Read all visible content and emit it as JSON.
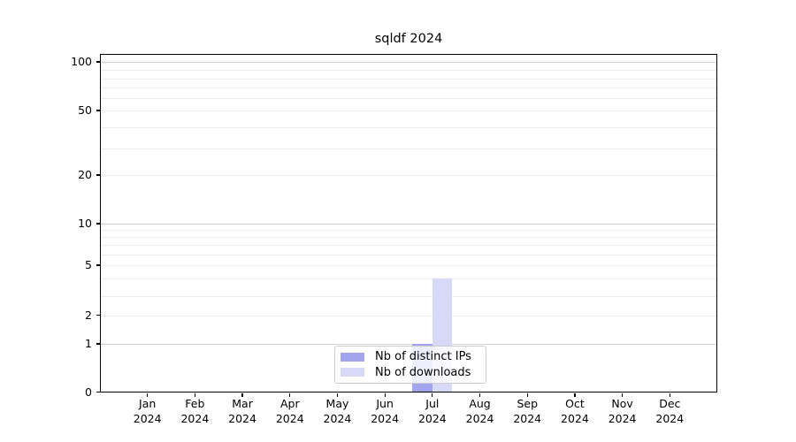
{
  "chart_data": {
    "type": "bar",
    "title": "sqldf 2024",
    "categories": [
      {
        "month": "Jan",
        "year": "2024"
      },
      {
        "month": "Feb",
        "year": "2024"
      },
      {
        "month": "Mar",
        "year": "2024"
      },
      {
        "month": "Apr",
        "year": "2024"
      },
      {
        "month": "May",
        "year": "2024"
      },
      {
        "month": "Jun",
        "year": "2024"
      },
      {
        "month": "Jul",
        "year": "2024"
      },
      {
        "month": "Aug",
        "year": "2024"
      },
      {
        "month": "Sep",
        "year": "2024"
      },
      {
        "month": "Oct",
        "year": "2024"
      },
      {
        "month": "Nov",
        "year": "2024"
      },
      {
        "month": "Dec",
        "year": "2024"
      }
    ],
    "series": [
      {
        "name": "Nb of distinct IPs",
        "color": "#a2a5ee",
        "values": [
          0,
          0,
          0,
          0,
          0,
          0,
          1,
          0,
          0,
          0,
          0,
          0
        ]
      },
      {
        "name": "Nb of downloads",
        "color": "#d8d9f7",
        "values": [
          0,
          0,
          0,
          0,
          0,
          0,
          4,
          0,
          0,
          0,
          0,
          0
        ]
      }
    ],
    "y_axis": {
      "scale": "log-like-with-zero",
      "ylim": [
        0,
        100
      ],
      "ticks": [
        0,
        1,
        2,
        5,
        10,
        20,
        50,
        100
      ],
      "minor_gridlines": [
        2,
        3,
        4,
        5,
        6,
        7,
        8,
        9,
        20,
        30,
        40,
        50,
        60,
        70,
        80,
        90
      ],
      "major_gridlines": [
        1,
        10,
        100
      ]
    },
    "legend": {
      "position": "lower-center-inside",
      "labels": [
        "Nb of distinct IPs",
        "Nb of downloads"
      ]
    },
    "grid": true,
    "colors": {
      "background": "#ffffff",
      "spine": "#000000",
      "minor_grid": "#ededed",
      "major_grid": "#d2d2d2"
    }
  }
}
